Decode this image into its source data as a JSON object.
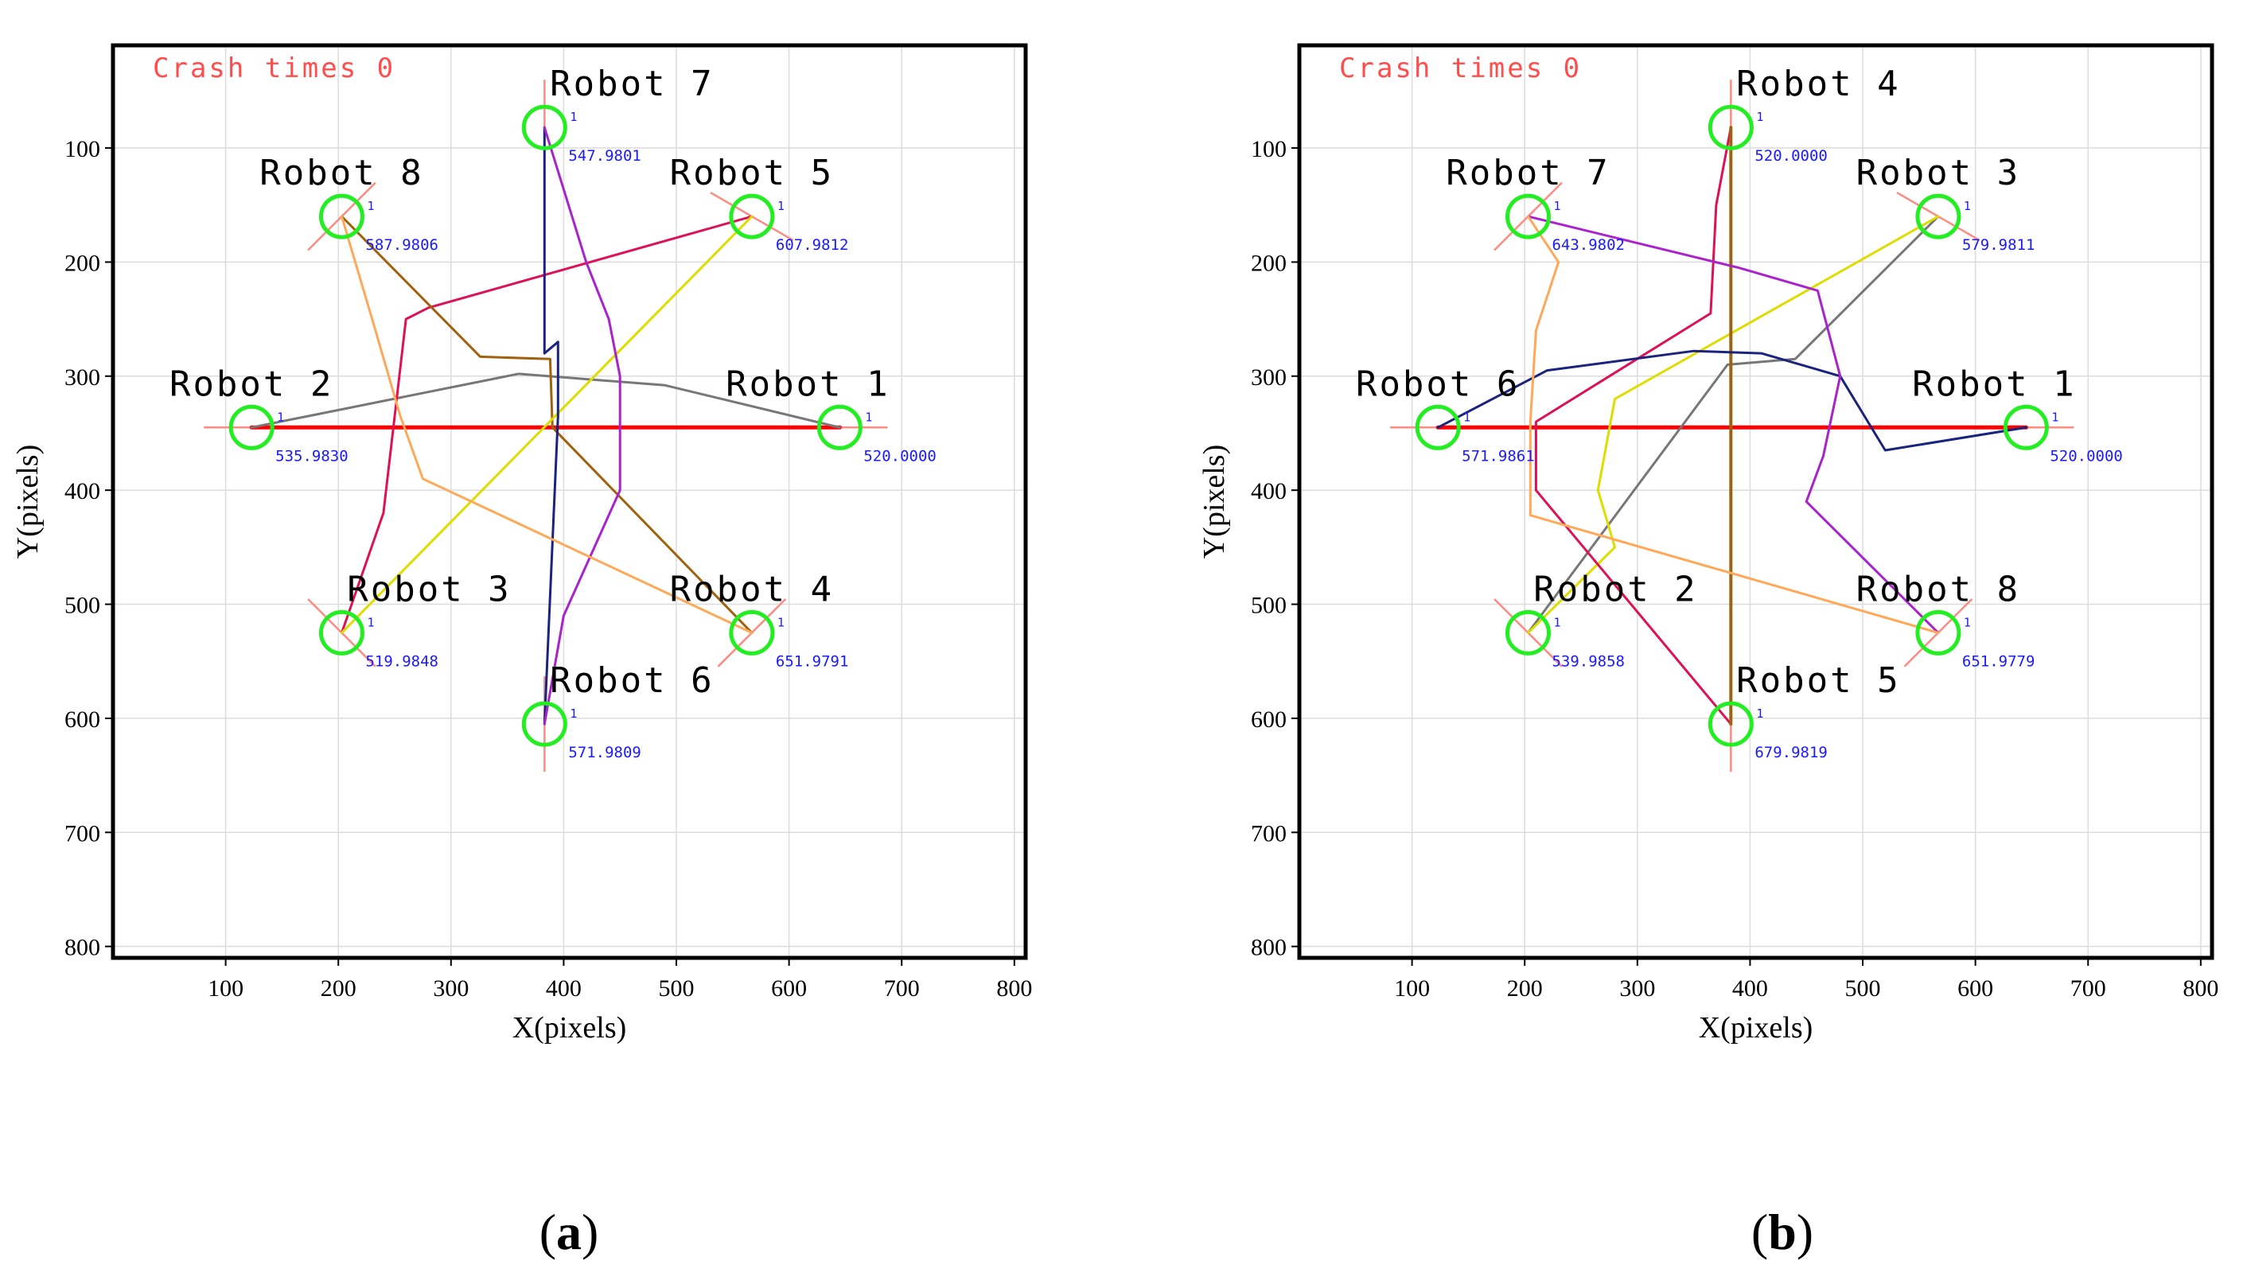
{
  "chart_data": [
    {
      "type": "line",
      "panel": "(a)",
      "caption_letter": "a",
      "xlabel": "X(pixels)",
      "ylabel": "Y(pixels)",
      "xlim": [
        0,
        810
      ],
      "ylim": [
        810,
        10
      ],
      "xticks": [
        100,
        200,
        300,
        400,
        500,
        600,
        700,
        800
      ],
      "yticks": [
        100,
        200,
        300,
        400,
        500,
        600,
        700,
        800
      ],
      "grid": true,
      "annotation": "Crash times 0",
      "robots": [
        {
          "name": "Robot 1",
          "x": 645,
          "y": 345,
          "value": "520.0000",
          "label_pos": "above-left",
          "heading": 180
        },
        {
          "name": "Robot 2",
          "x": 123,
          "y": 345,
          "value": "535.9830",
          "label_pos": "above",
          "heading": 0
        },
        {
          "name": "Robot 3",
          "x": 203,
          "y": 525,
          "value": "519.9848",
          "label_pos": "above-right",
          "heading": -45
        },
        {
          "name": "Robot 4",
          "x": 567,
          "y": 525,
          "value": "651.9791",
          "label_pos": "above",
          "heading": -135
        },
        {
          "name": "Robot 5",
          "x": 567,
          "y": 160,
          "value": "607.9812",
          "label_pos": "above",
          "heading": 150
        },
        {
          "name": "Robot 6",
          "x": 383,
          "y": 605,
          "value": "571.9809",
          "label_pos": "above-right",
          "heading": -90
        },
        {
          "name": "Robot 7",
          "x": 383,
          "y": 82,
          "value": "547.9801",
          "label_pos": "above-right",
          "heading": 90
        },
        {
          "name": "Robot 8",
          "x": 203,
          "y": 160,
          "value": "587.9806",
          "label_pos": "above",
          "heading": 45
        }
      ],
      "series": [
        {
          "name": "Robot 1 path",
          "color": "#ff0000",
          "width": 5,
          "points": [
            [
              645,
              345
            ],
            [
              123,
              345
            ]
          ]
        },
        {
          "name": "Robot 2 path",
          "color": "#777777",
          "width": 3,
          "points": [
            [
              123,
              345
            ],
            [
              360,
              298
            ],
            [
              490,
              308
            ],
            [
              645,
              345
            ]
          ]
        },
        {
          "name": "Robot 3 path",
          "color": "#dd1155",
          "width": 3,
          "points": [
            [
              203,
              525
            ],
            [
              240,
              420
            ],
            [
              260,
              250
            ],
            [
              280,
              240
            ],
            [
              567,
              160
            ]
          ]
        },
        {
          "name": "Robot 4 path",
          "color": "#a0620e",
          "width": 3,
          "points": [
            [
              567,
              525
            ],
            [
              390,
              345
            ],
            [
              388,
              285
            ],
            [
              326,
              283
            ],
            [
              203,
              160
            ]
          ]
        },
        {
          "name": "Robot 5 path",
          "color": "#dddd00",
          "width": 3,
          "points": [
            [
              567,
              160
            ],
            [
              203,
              525
            ]
          ]
        },
        {
          "name": "Robot 6 path",
          "color": "#1a237e",
          "width": 3,
          "points": [
            [
              383,
              605
            ],
            [
              395,
              335
            ],
            [
              395,
              270
            ],
            [
              383,
              280
            ],
            [
              383,
              82
            ]
          ]
        },
        {
          "name": "Robot 7 path",
          "color": "#aa22cc",
          "width": 3,
          "points": [
            [
              383,
              82
            ],
            [
              420,
              200
            ],
            [
              440,
              250
            ],
            [
              450,
              300
            ],
            [
              450,
              400
            ],
            [
              400,
              510
            ],
            [
              383,
              605
            ]
          ]
        },
        {
          "name": "Robot 8 path",
          "color": "#ffa858",
          "width": 3,
          "points": [
            [
              203,
              160
            ],
            [
              230,
              250
            ],
            [
              255,
              335
            ],
            [
              275,
              390
            ],
            [
              567,
              525
            ]
          ]
        }
      ]
    },
    {
      "type": "line",
      "panel": "(b)",
      "caption_letter": "b",
      "xlabel": "X(pixels)",
      "ylabel": "Y(pixels)",
      "xlim": [
        0,
        810
      ],
      "ylim": [
        810,
        10
      ],
      "xticks": [
        100,
        200,
        300,
        400,
        500,
        600,
        700,
        800
      ],
      "yticks": [
        100,
        200,
        300,
        400,
        500,
        600,
        700,
        800
      ],
      "grid": true,
      "annotation": "Crash times 0",
      "robots": [
        {
          "name": "Robot 1",
          "x": 645,
          "y": 345,
          "value": "520.0000",
          "label_pos": "above-left",
          "heading": 180
        },
        {
          "name": "Robot 2",
          "x": 203,
          "y": 525,
          "value": "539.9858",
          "label_pos": "above-right",
          "heading": -45
        },
        {
          "name": "Robot 3",
          "x": 567,
          "y": 160,
          "value": "579.9811",
          "label_pos": "above",
          "heading": 150
        },
        {
          "name": "Robot 4",
          "x": 383,
          "y": 82,
          "value": "520.0000",
          "label_pos": "above-right",
          "heading": 90
        },
        {
          "name": "Robot 5",
          "x": 383,
          "y": 605,
          "value": "679.9819",
          "label_pos": "above-right",
          "heading": -90
        },
        {
          "name": "Robot 6",
          "x": 123,
          "y": 345,
          "value": "571.9861",
          "label_pos": "above",
          "heading": 0
        },
        {
          "name": "Robot 7",
          "x": 203,
          "y": 160,
          "value": "643.9802",
          "label_pos": "above",
          "heading": 45
        },
        {
          "name": "Robot 8",
          "x": 567,
          "y": 525,
          "value": "651.9779",
          "label_pos": "above",
          "heading": -135
        }
      ],
      "series": [
        {
          "name": "Robot 1 path",
          "color": "#ff0000",
          "width": 5,
          "points": [
            [
              645,
              345
            ],
            [
              123,
              345
            ]
          ]
        },
        {
          "name": "Robot 2 path",
          "color": "#777777",
          "width": 3,
          "points": [
            [
              203,
              525
            ],
            [
              380,
              290
            ],
            [
              440,
              285
            ],
            [
              567,
              160
            ]
          ]
        },
        {
          "name": "Robot 3 path",
          "color": "#dddd00",
          "width": 3,
          "points": [
            [
              567,
              160
            ],
            [
              280,
              320
            ],
            [
              265,
              400
            ],
            [
              280,
              450
            ],
            [
              203,
              525
            ]
          ]
        },
        {
          "name": "Robot 4 path",
          "color": "#dd1155",
          "width": 3,
          "points": [
            [
              383,
              82
            ],
            [
              370,
              150
            ],
            [
              365,
              245
            ],
            [
              210,
              340
            ],
            [
              210,
              400
            ],
            [
              383,
              605
            ]
          ]
        },
        {
          "name": "Robot 5 path",
          "color": "#a0620e",
          "width": 4,
          "points": [
            [
              383,
              605
            ],
            [
              383,
              82
            ]
          ]
        },
        {
          "name": "Robot 6 path",
          "color": "#1a237e",
          "width": 3,
          "points": [
            [
              123,
              345
            ],
            [
              220,
              295
            ],
            [
              350,
              278
            ],
            [
              410,
              280
            ],
            [
              480,
              300
            ],
            [
              520,
              365
            ],
            [
              645,
              345
            ]
          ]
        },
        {
          "name": "Robot 7 path",
          "color": "#aa22cc",
          "width": 3,
          "points": [
            [
              203,
              160
            ],
            [
              390,
              205
            ],
            [
              460,
              225
            ],
            [
              480,
              300
            ],
            [
              465,
              370
            ],
            [
              450,
              410
            ],
            [
              567,
              525
            ]
          ]
        },
        {
          "name": "Robot 8 path",
          "color": "#ffa858",
          "width": 3,
          "points": [
            [
              203,
              160
            ],
            [
              230,
              200
            ],
            [
              210,
              260
            ],
            [
              205,
              340
            ],
            [
              205,
              422
            ],
            [
              567,
              525
            ]
          ]
        }
      ]
    }
  ]
}
